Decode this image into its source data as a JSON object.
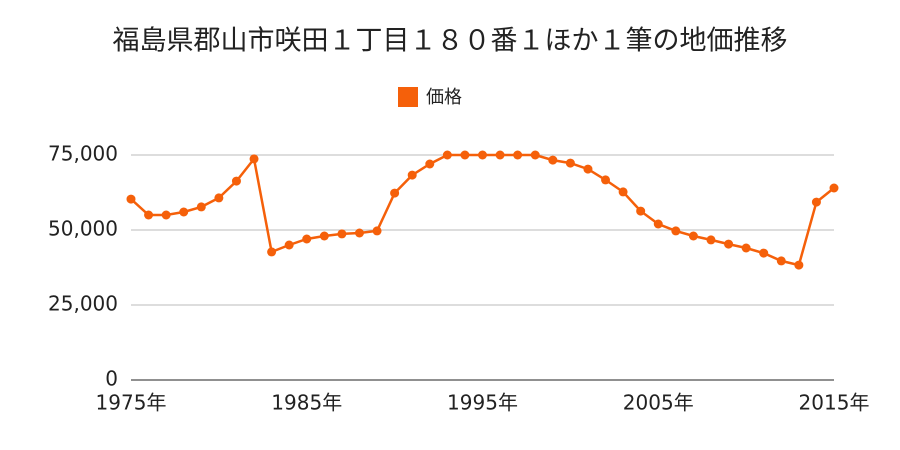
{
  "chart_data": {
    "type": "line",
    "title": "福島県郡山市咲田１丁目１８０番１ほか１筆の地価推移",
    "x": [
      1975,
      1976,
      1977,
      1978,
      1979,
      1980,
      1981,
      1982,
      1983,
      1984,
      1985,
      1986,
      1987,
      1988,
      1989,
      1990,
      1991,
      1992,
      1993,
      1994,
      1995,
      1996,
      1997,
      1998,
      1999,
      2000,
      2001,
      2002,
      2003,
      2004,
      2005,
      2006,
      2007,
      2008,
      2009,
      2010,
      2011,
      2012,
      2013,
      2014,
      2015
    ],
    "series": [
      {
        "name": "価格",
        "color": "#f5600a",
        "values": [
          60300,
          55000,
          55000,
          56000,
          57700,
          60700,
          66300,
          73700,
          42700,
          45000,
          47000,
          48000,
          48700,
          49000,
          49700,
          62300,
          68300,
          72000,
          75000,
          75000,
          75000,
          75000,
          75000,
          75000,
          73300,
          72300,
          70300,
          66700,
          62700,
          56300,
          52000,
          49700,
          48000,
          46700,
          45300,
          44000,
          42300,
          39700,
          38300,
          59300,
          64000
        ]
      }
    ],
    "xlim": [
      1975,
      2015
    ],
    "xticks": [
      {
        "value": 1975,
        "label": "1975年"
      },
      {
        "value": 1985,
        "label": "1985年"
      },
      {
        "value": 1995,
        "label": "1995年"
      },
      {
        "value": 2005,
        "label": "2005年"
      },
      {
        "value": 2015,
        "label": "2015年"
      }
    ],
    "ylim": [
      0,
      75000
    ],
    "yticks": [
      0,
      {
        "value": 25000,
        "label": "25,000"
      },
      {
        "value": 50000,
        "label": "50,000"
      },
      {
        "value": 75000,
        "label": "75,000"
      }
    ],
    "grid": true
  }
}
